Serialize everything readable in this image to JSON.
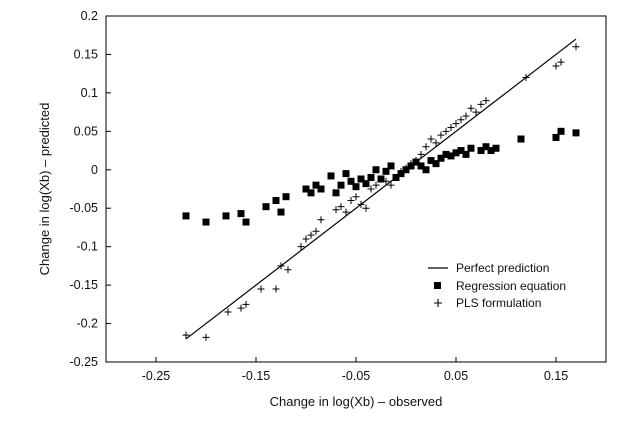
{
  "chart_data": {
    "type": "scatter",
    "title": "",
    "xlabel": "Change in log(Xb) – observed",
    "ylabel": "Change in log(Xb) – predicted",
    "xlim": [
      -0.3,
      0.2
    ],
    "ylim": [
      -0.25,
      0.2
    ],
    "x_ticks": [
      -0.25,
      -0.15,
      -0.05,
      0.05,
      0.15
    ],
    "x_tick_labels": [
      "-0.25",
      "-0.15",
      "-0.05",
      "0.05",
      "0.15"
    ],
    "y_ticks": [
      -0.25,
      -0.2,
      -0.15,
      -0.1,
      -0.05,
      0,
      0.05,
      0.1,
      0.15,
      0.2
    ],
    "y_tick_labels": [
      "-0.25",
      "-0.2",
      "-0.15",
      "-0.1",
      "-0.05",
      "0",
      "0.05",
      "0.1",
      "0.15",
      "0.2"
    ],
    "grid": false,
    "legend_position": "bottom-right",
    "series": [
      {
        "name": "Perfect prediction",
        "kind": "line",
        "color": "#000000",
        "points": [
          [
            -0.22,
            -0.22
          ],
          [
            0.17,
            0.17
          ]
        ]
      },
      {
        "name": "Regression equation",
        "kind": "square",
        "color": "#000000",
        "points": [
          [
            -0.22,
            -0.06
          ],
          [
            -0.2,
            -0.068
          ],
          [
            -0.18,
            -0.06
          ],
          [
            -0.165,
            -0.057
          ],
          [
            -0.16,
            -0.068
          ],
          [
            -0.14,
            -0.048
          ],
          [
            -0.13,
            -0.04
          ],
          [
            -0.125,
            -0.055
          ],
          [
            -0.12,
            -0.035
          ],
          [
            -0.1,
            -0.025
          ],
          [
            -0.095,
            -0.03
          ],
          [
            -0.09,
            -0.02
          ],
          [
            -0.085,
            -0.025
          ],
          [
            -0.075,
            -0.008
          ],
          [
            -0.07,
            -0.03
          ],
          [
            -0.065,
            -0.02
          ],
          [
            -0.06,
            -0.005
          ],
          [
            -0.055,
            -0.015
          ],
          [
            -0.05,
            -0.022
          ],
          [
            -0.045,
            -0.012
          ],
          [
            -0.04,
            -0.018
          ],
          [
            -0.035,
            -0.01
          ],
          [
            -0.03,
            0.0
          ],
          [
            -0.025,
            -0.012
          ],
          [
            -0.02,
            -0.002
          ],
          [
            -0.015,
            0.005
          ],
          [
            -0.01,
            -0.01
          ],
          [
            -0.005,
            -0.005
          ],
          [
            0.0,
            0.0
          ],
          [
            0.005,
            0.005
          ],
          [
            0.01,
            0.01
          ],
          [
            0.015,
            0.005
          ],
          [
            0.02,
            0.0
          ],
          [
            0.025,
            0.012
          ],
          [
            0.03,
            0.008
          ],
          [
            0.035,
            0.015
          ],
          [
            0.04,
            0.02
          ],
          [
            0.045,
            0.018
          ],
          [
            0.05,
            0.022
          ],
          [
            0.055,
            0.025
          ],
          [
            0.06,
            0.02
          ],
          [
            0.065,
            0.028
          ],
          [
            0.075,
            0.025
          ],
          [
            0.08,
            0.03
          ],
          [
            0.085,
            0.025
          ],
          [
            0.09,
            0.028
          ],
          [
            0.115,
            0.04
          ],
          [
            0.15,
            0.042
          ],
          [
            0.155,
            0.05
          ],
          [
            0.17,
            0.048
          ]
        ]
      },
      {
        "name": "PLS formulation",
        "kind": "plus",
        "color": "#000000",
        "points": [
          [
            -0.22,
            -0.215
          ],
          [
            -0.2,
            -0.218
          ],
          [
            -0.178,
            -0.185
          ],
          [
            -0.165,
            -0.18
          ],
          [
            -0.16,
            -0.175
          ],
          [
            -0.145,
            -0.155
          ],
          [
            -0.13,
            -0.155
          ],
          [
            -0.125,
            -0.125
          ],
          [
            -0.118,
            -0.13
          ],
          [
            -0.105,
            -0.1
          ],
          [
            -0.1,
            -0.09
          ],
          [
            -0.095,
            -0.085
          ],
          [
            -0.09,
            -0.08
          ],
          [
            -0.085,
            -0.065
          ],
          [
            -0.07,
            -0.052
          ],
          [
            -0.065,
            -0.048
          ],
          [
            -0.06,
            -0.055
          ],
          [
            -0.055,
            -0.04
          ],
          [
            -0.05,
            -0.035
          ],
          [
            -0.045,
            -0.045
          ],
          [
            -0.04,
            -0.05
          ],
          [
            -0.035,
            -0.025
          ],
          [
            -0.03,
            -0.02
          ],
          [
            -0.025,
            -0.012
          ],
          [
            -0.02,
            -0.015
          ],
          [
            -0.015,
            -0.02
          ],
          [
            -0.01,
            -0.01
          ],
          [
            -0.005,
            -0.002
          ],
          [
            0.0,
            0.002
          ],
          [
            0.005,
            0.008
          ],
          [
            0.01,
            0.012
          ],
          [
            0.015,
            0.02
          ],
          [
            0.02,
            0.03
          ],
          [
            0.025,
            0.04
          ],
          [
            0.03,
            0.035
          ],
          [
            0.035,
            0.045
          ],
          [
            0.04,
            0.05
          ],
          [
            0.045,
            0.055
          ],
          [
            0.05,
            0.06
          ],
          [
            0.055,
            0.065
          ],
          [
            0.06,
            0.07
          ],
          [
            0.065,
            0.08
          ],
          [
            0.07,
            0.075
          ],
          [
            0.075,
            0.085
          ],
          [
            0.08,
            0.09
          ],
          [
            0.12,
            0.12
          ],
          [
            0.15,
            0.135
          ],
          [
            0.155,
            0.14
          ],
          [
            0.17,
            0.16
          ]
        ]
      }
    ]
  }
}
